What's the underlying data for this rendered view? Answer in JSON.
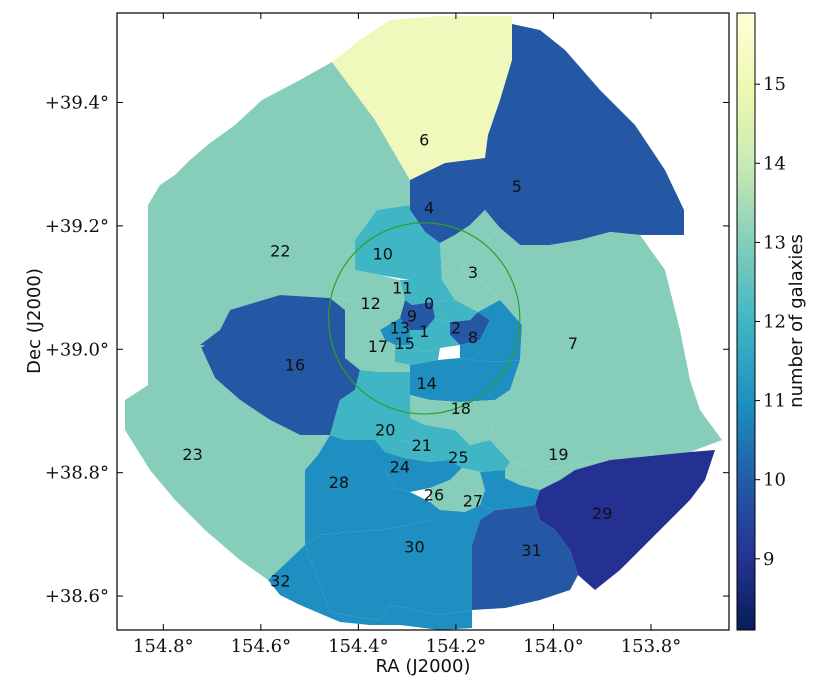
{
  "chart_data": {
    "type": "heatmap",
    "title": "",
    "xlabel": "RA (J2000)",
    "ylabel": "Dec (J2000)",
    "xlim": [
      154.895,
      153.64
    ],
    "ylim": [
      38.545,
      39.545
    ],
    "x_ticks": [
      {
        "value": 154.8,
        "label": "154.8°"
      },
      {
        "value": 154.6,
        "label": "154.6°"
      },
      {
        "value": 154.4,
        "label": "154.4°"
      },
      {
        "value": 154.2,
        "label": "154.2°"
      },
      {
        "value": 154.0,
        "label": "154.0°"
      },
      {
        "value": 153.8,
        "label": "153.8°"
      }
    ],
    "y_ticks": [
      {
        "value": 39.4,
        "label": "+39.4°"
      },
      {
        "value": 39.2,
        "label": "+39.2°"
      },
      {
        "value": 39.0,
        "label": "+39.0°"
      },
      {
        "value": 38.8,
        "label": "+38.8°"
      },
      {
        "value": 38.6,
        "label": "+38.6°"
      }
    ],
    "colorbar": {
      "label": "number of galaxies",
      "colormap": "YlGnBu_r",
      "range": [
        8.1,
        15.9
      ],
      "ticks": [
        {
          "value": 9,
          "label": "9"
        },
        {
          "value": 10,
          "label": "10"
        },
        {
          "value": 11,
          "label": "11"
        },
        {
          "value": 12,
          "label": "12"
        },
        {
          "value": 13,
          "label": "13"
        },
        {
          "value": 14,
          "label": "14"
        },
        {
          "value": 15,
          "label": "15"
        }
      ]
    },
    "circle": {
      "center_ra": 154.265,
      "center_dec": 39.05,
      "radius_deg": 0.155,
      "color": "#2ca02c"
    },
    "regions": [
      {
        "id": "0",
        "ra": 154.255,
        "dec": 39.075,
        "value": 12
      },
      {
        "id": "1",
        "ra": 154.265,
        "dec": 39.03,
        "value": 12
      },
      {
        "id": "2",
        "ra": 154.2,
        "dec": 39.035,
        "value": 9
      },
      {
        "id": "3",
        "ra": 154.165,
        "dec": 39.125,
        "value": 13
      },
      {
        "id": "4",
        "ra": 154.255,
        "dec": 39.23,
        "value": 10
      },
      {
        "id": "5",
        "ra": 154.075,
        "dec": 39.265,
        "value": 10
      },
      {
        "id": "6",
        "ra": 154.265,
        "dec": 39.34,
        "value": 15
      },
      {
        "id": "7",
        "ra": 153.96,
        "dec": 39.01,
        "value": 13
      },
      {
        "id": "8",
        "ra": 154.165,
        "dec": 39.02,
        "value": 11
      },
      {
        "id": "9",
        "ra": 154.29,
        "dec": 39.055,
        "value": 10
      },
      {
        "id": "10",
        "ra": 154.35,
        "dec": 39.155,
        "value": 12
      },
      {
        "id": "11",
        "ra": 154.31,
        "dec": 39.1,
        "value": 12
      },
      {
        "id": "12",
        "ra": 154.375,
        "dec": 39.075,
        "value": 13
      },
      {
        "id": "13",
        "ra": 154.315,
        "dec": 39.035,
        "value": 11
      },
      {
        "id": "14",
        "ra": 154.26,
        "dec": 38.945,
        "value": 11
      },
      {
        "id": "15",
        "ra": 154.305,
        "dec": 39.01,
        "value": 12
      },
      {
        "id": "16",
        "ra": 154.53,
        "dec": 38.975,
        "value": 10
      },
      {
        "id": "17",
        "ra": 154.36,
        "dec": 39.005,
        "value": 13
      },
      {
        "id": "18",
        "ra": 154.19,
        "dec": 38.905,
        "value": 13
      },
      {
        "id": "19",
        "ra": 153.99,
        "dec": 38.83,
        "value": 13
      },
      {
        "id": "20",
        "ra": 154.345,
        "dec": 38.87,
        "value": 12
      },
      {
        "id": "21",
        "ra": 154.27,
        "dec": 38.845,
        "value": 12
      },
      {
        "id": "22",
        "ra": 154.56,
        "dec": 39.16,
        "value": 13
      },
      {
        "id": "23",
        "ra": 154.74,
        "dec": 38.83,
        "value": 13
      },
      {
        "id": "24",
        "ra": 154.315,
        "dec": 38.81,
        "value": 11
      },
      {
        "id": "25",
        "ra": 154.195,
        "dec": 38.825,
        "value": 12
      },
      {
        "id": "26",
        "ra": 154.245,
        "dec": 38.765,
        "value": 13
      },
      {
        "id": "27",
        "ra": 154.165,
        "dec": 38.755,
        "value": 11
      },
      {
        "id": "28",
        "ra": 154.44,
        "dec": 38.785,
        "value": 11
      },
      {
        "id": "29",
        "ra": 153.9,
        "dec": 38.735,
        "value": 9
      },
      {
        "id": "30",
        "ra": 154.285,
        "dec": 38.68,
        "value": 11
      },
      {
        "id": "31",
        "ra": 154.045,
        "dec": 38.675,
        "value": 10
      },
      {
        "id": "32",
        "ra": 154.56,
        "dec": 38.625,
        "value": 11
      }
    ]
  }
}
